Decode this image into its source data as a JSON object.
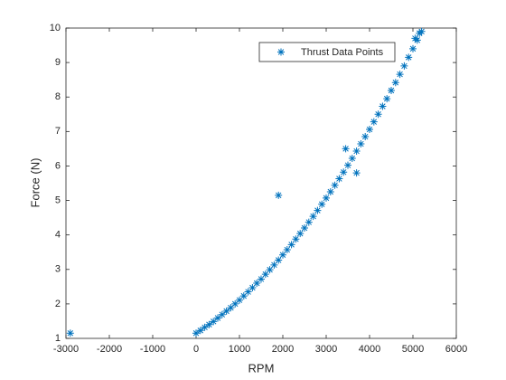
{
  "chart_data": {
    "type": "scatter",
    "xlabel": "RPM",
    "ylabel": "Force (N)",
    "xlim": [
      -3000,
      6000
    ],
    "xticks": [
      -3000,
      -2000,
      -1000,
      0,
      1000,
      2000,
      3000,
      4000,
      5000,
      6000
    ],
    "ylim": [
      1,
      10
    ],
    "yticks": [
      1,
      2,
      3,
      4,
      5,
      6,
      7,
      8,
      9,
      10
    ],
    "legend_position": "top-right",
    "series": [
      {
        "name": "Thrust Data Points",
        "color": "#0072bd",
        "x": [
          -2900,
          1900,
          3450,
          3700,
          0,
          100,
          200,
          300,
          400,
          500,
          600,
          700,
          800,
          900,
          1000,
          1100,
          1200,
          1300,
          1400,
          1500,
          1600,
          1700,
          1800,
          1900,
          2000,
          2100,
          2200,
          2300,
          2400,
          2500,
          2600,
          2700,
          2800,
          2900,
          3000,
          3100,
          3200,
          3300,
          3400,
          3500,
          3600,
          3700,
          3800,
          3900,
          4000,
          4100,
          4200,
          4300,
          4400,
          4500,
          4600,
          4700,
          4800,
          4900,
          5000,
          5100,
          5200,
          5050,
          5150
        ],
        "values": [
          1.15,
          5.15,
          6.5,
          5.8,
          1.15,
          1.23,
          1.32,
          1.4,
          1.49,
          1.59,
          1.69,
          1.79,
          1.89,
          2.0,
          2.11,
          2.23,
          2.35,
          2.47,
          2.6,
          2.72,
          2.86,
          2.99,
          3.13,
          3.27,
          3.42,
          3.57,
          3.72,
          3.88,
          4.04,
          4.2,
          4.37,
          4.54,
          4.71,
          4.89,
          5.07,
          5.25,
          5.44,
          5.63,
          5.82,
          6.02,
          6.22,
          6.43,
          6.64,
          6.85,
          7.06,
          7.28,
          7.5,
          7.73,
          7.95,
          8.19,
          8.42,
          8.66,
          8.9,
          9.15,
          9.4,
          9.65,
          9.9,
          9.7,
          9.85
        ]
      }
    ]
  }
}
